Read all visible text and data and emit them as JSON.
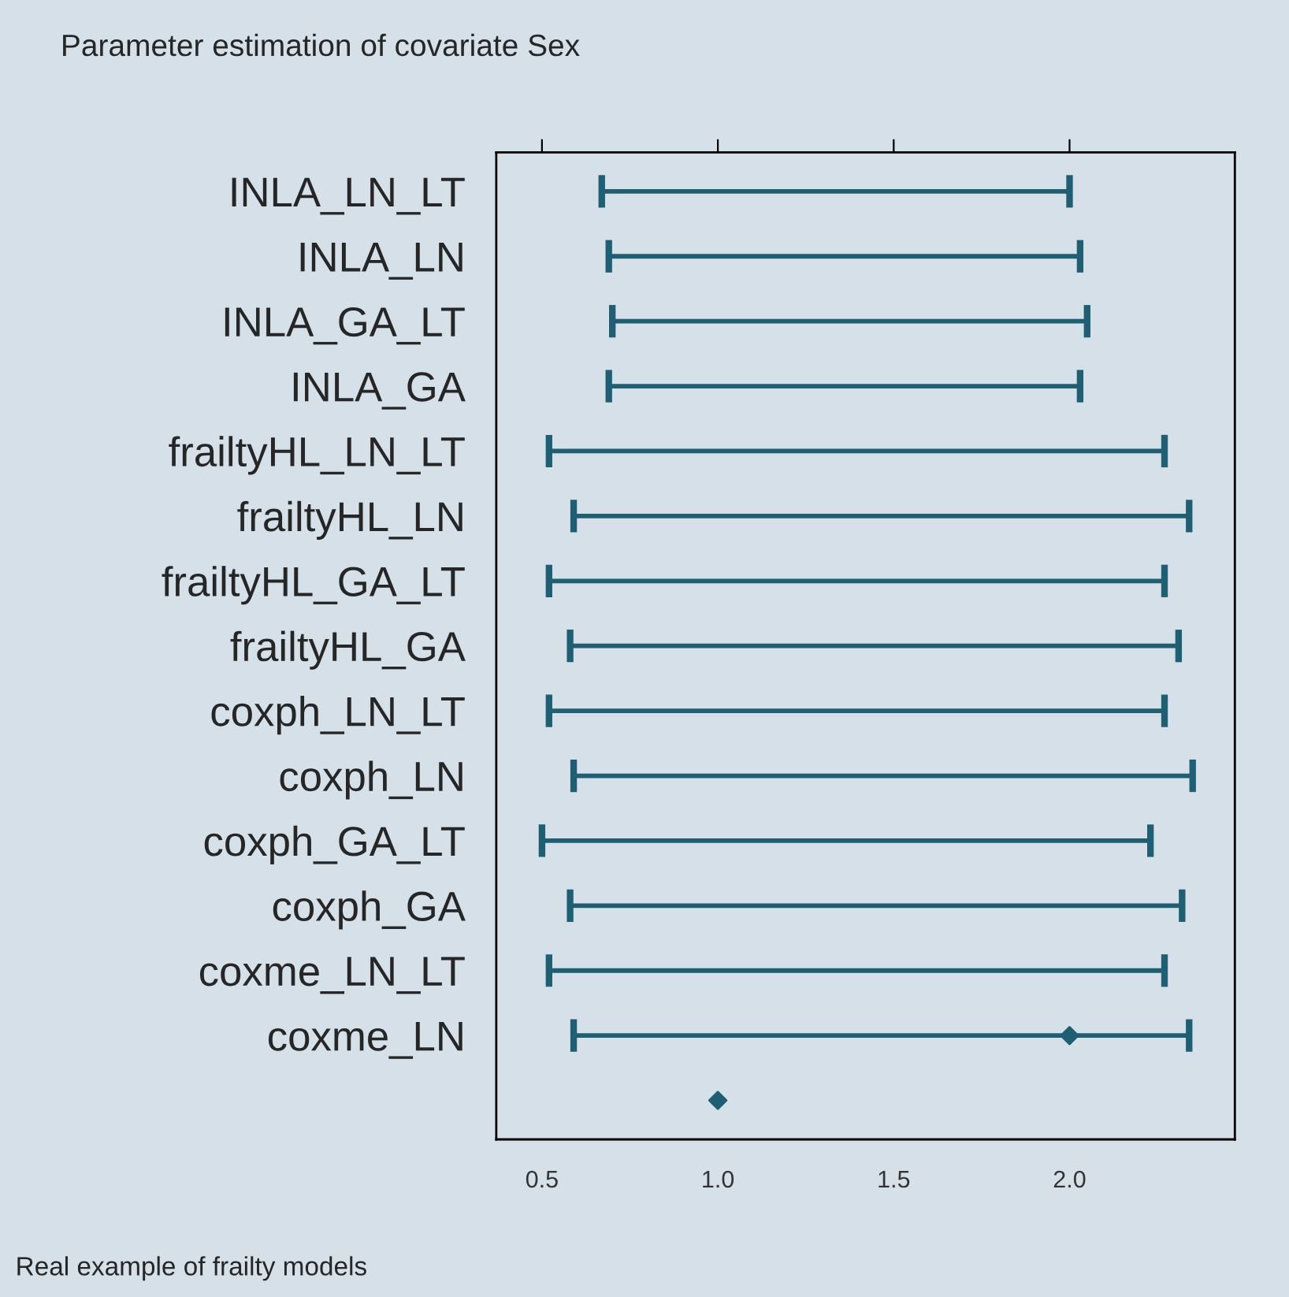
{
  "chart_data": {
    "type": "bar",
    "orientation": "horizontal",
    "title": "Parameter estimation of covariate Sex",
    "annotations": [
      "Real example of frailty models"
    ],
    "categories": [
      "INLA_LN_LT",
      "INLA_LN",
      "INLA_GA_LT",
      "INLA_GA",
      "frailtyHL_LN_LT",
      "frailtyHL_LN",
      "frailtyHL_GA_LT",
      "frailtyHL_GA",
      "coxph_LN_LT",
      "coxph_LN",
      "coxph_GA_LT",
      "coxph_GA",
      "coxme_LN_LT",
      "coxme_LN",
      null
    ],
    "series": [
      {
        "color": "#1f5f73",
        "base": [
          0.67,
          0.69,
          0.7,
          0.69,
          0.52,
          0.59,
          0.52,
          0.58,
          0.52,
          0.59,
          0.5,
          0.58,
          0.52,
          0.59,
          null
        ],
        "values": [
          1.33,
          1.34,
          1.35,
          1.34,
          1.75,
          1.75,
          1.75,
          1.73,
          1.75,
          1.76,
          1.73,
          1.74,
          1.75,
          1.75,
          null
        ]
      },
      {
        "type": "scatter",
        "color": "#1f5f73",
        "marker": "diamond",
        "values": [
          null,
          null,
          null,
          null,
          null,
          null,
          null,
          null,
          null,
          null,
          null,
          null,
          null,
          2.0,
          1.0
        ]
      }
    ],
    "xlim": [
      0.37,
      2.47
    ],
    "xticks": [
      {
        "value": 0.5,
        "label": "0.5"
      },
      {
        "value": 1.0,
        "label": "1.0"
      },
      {
        "value": 1.5,
        "label": "1.5"
      },
      {
        "value": 2.0,
        "label": "2.0"
      }
    ],
    "grid": false,
    "legend": false
  }
}
